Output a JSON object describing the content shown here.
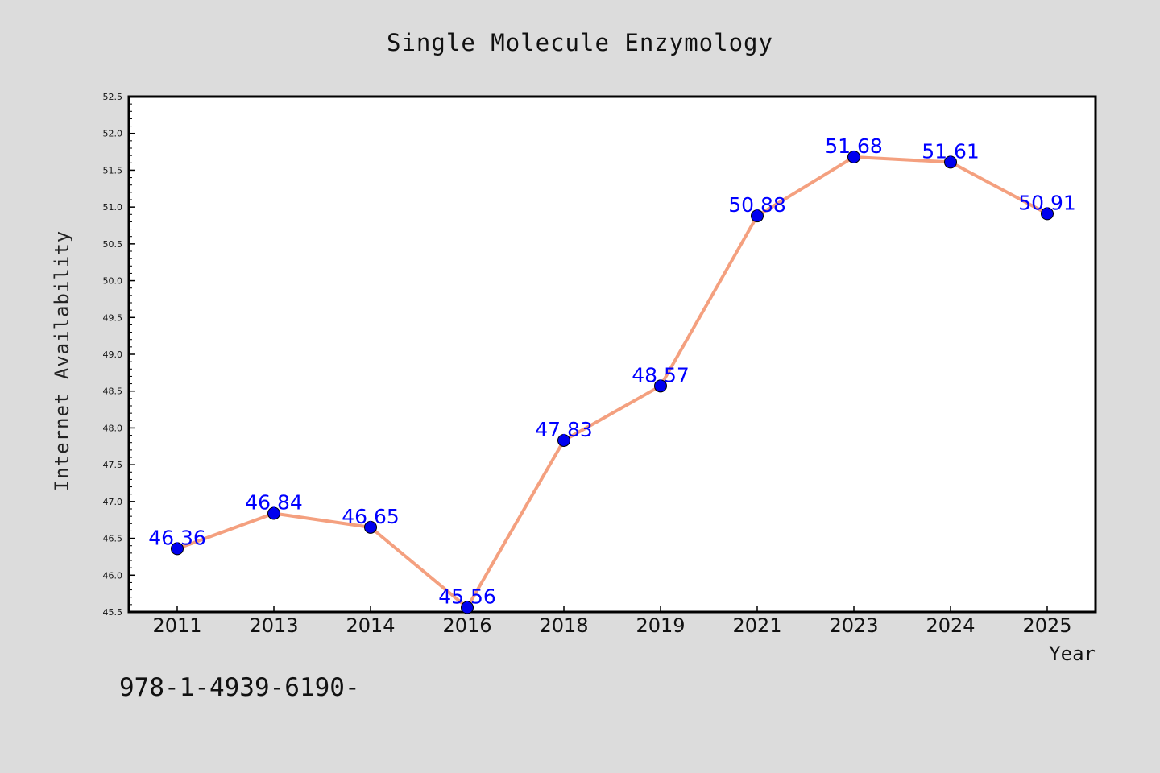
{
  "chart_data": {
    "type": "line",
    "title": "Single Molecule Enzymology",
    "xlabel": "Year",
    "ylabel": "Internet Availability",
    "categories": [
      "2011",
      "2013",
      "2014",
      "2016",
      "2018",
      "2019",
      "2021",
      "2023",
      "2024",
      "2025"
    ],
    "series": [
      {
        "values": [
          46.36,
          46.84,
          46.65,
          45.56,
          47.83,
          48.57,
          50.88,
          51.68,
          51.61,
          50.91
        ]
      }
    ],
    "data_labels": [
      "46.36",
      "46.84",
      "46.65",
      "45.56",
      "47.83",
      "48.57",
      "50.88",
      "51.68",
      "51.61",
      "50.91"
    ],
    "ylim": [
      45.5,
      52.5
    ],
    "yticks": [
      45.5,
      46.0,
      46.5,
      47.0,
      47.5,
      48.0,
      48.5,
      49.0,
      49.5,
      50.0,
      50.5,
      51.0,
      51.5,
      52.0,
      52.5
    ],
    "ytick_labels": [
      "45.5",
      "46.0",
      "46.5",
      "47.0",
      "47.5",
      "48.0",
      "48.5",
      "49.0",
      "49.5",
      "50.0",
      "50.5",
      "51.0",
      "51.5",
      "52.0",
      "52.5"
    ],
    "grid": false,
    "legend": "none",
    "colors": {
      "line": "#f4a07f",
      "marker": "#0000ee",
      "label": "#0000ff",
      "background": "#dcdcdc",
      "plot_background": "#ffffff"
    }
  },
  "footer_text": "978-1-4939-6190-"
}
